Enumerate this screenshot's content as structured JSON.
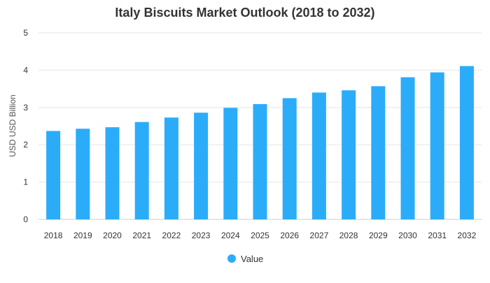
{
  "chart_data": {
    "type": "bar",
    "title": "Italy Biscuits Market Outlook (2018 to 2032)",
    "xlabel": "",
    "ylabel": "USD USD Billion",
    "categories": [
      "2018",
      "2019",
      "2020",
      "2021",
      "2022",
      "2023",
      "2024",
      "2025",
      "2026",
      "2027",
      "2028",
      "2029",
      "2030",
      "2031",
      "2032"
    ],
    "series": [
      {
        "name": "Value",
        "values": [
          2.37,
          2.43,
          2.47,
          2.61,
          2.73,
          2.86,
          2.99,
          3.09,
          3.25,
          3.4,
          3.46,
          3.57,
          3.81,
          3.94,
          4.11
        ],
        "color": "#2BACF9"
      }
    ],
    "ylim": [
      0,
      5
    ],
    "yticks": [
      0,
      1,
      2,
      3,
      4,
      5
    ],
    "grid": true,
    "legend_position": "bottom"
  }
}
